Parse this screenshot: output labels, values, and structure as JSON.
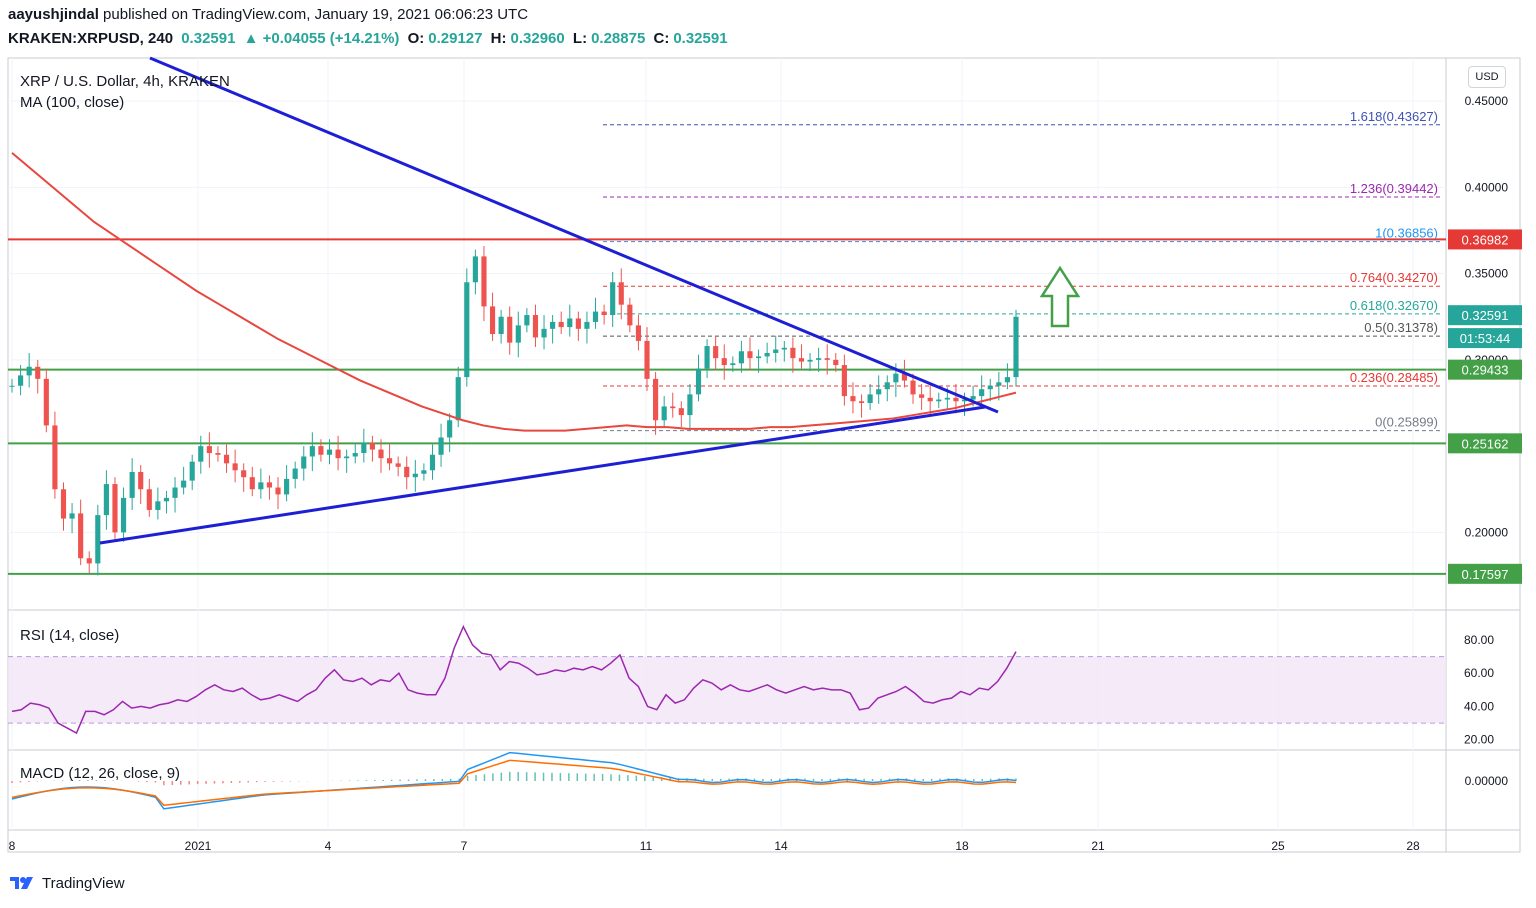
{
  "header": {
    "author": "aayushjindal",
    "published_text": "published on TradingView.com, January 19, 2021 06:06:23 UTC",
    "symbol": "KRAKEN:XRPUSD, 240",
    "last": "0.32591",
    "change": "▲ +0.04055 (+14.21%)",
    "o_label": "O:",
    "o_val": "0.29127",
    "h_label": "H:",
    "h_val": "0.32960",
    "l_label": "L:",
    "l_val": "0.28875",
    "c_label": "C:",
    "c_val": "0.32591"
  },
  "currency_button": "USD",
  "footer": {
    "brand": "TradingView"
  },
  "colors": {
    "bull": "#26a69a",
    "bear": "#ef5350",
    "trend": "#1d1fd4",
    "ma": "#e8473e",
    "support": "#43a047",
    "resistance": "#e53935",
    "rsi": "#9c27b0",
    "macd": "#2196f3",
    "signal": "#ff6d00"
  },
  "chart_data": {
    "type": "candlestick",
    "title": "XRP / U.S. Dollar, 4h, KRAKEN",
    "indicator_label": "MA (100, close)",
    "y_ticks": [
      "0.45000",
      "0.40000",
      "0.35000",
      "0.30000",
      "0.20000"
    ],
    "x_ticks": [
      "8",
      "2021",
      "4",
      "7",
      "11",
      "14",
      "18",
      "21",
      "25",
      "28"
    ],
    "ylim": [
      0.155,
      0.475
    ],
    "horizontal_levels": [
      {
        "label": "0.36982",
        "value": 0.36982,
        "kind": "resistance"
      },
      {
        "label": "0.29433",
        "value": 0.29433,
        "kind": "support"
      },
      {
        "label": "0.25162",
        "value": 0.25162,
        "kind": "support"
      },
      {
        "label": "0.17597",
        "value": 0.17597,
        "kind": "support"
      }
    ],
    "price_tags": [
      {
        "label": "0.32591",
        "value": 0.32591
      },
      {
        "label": "01:53:44",
        "value": 0.31378
      }
    ],
    "fibonacci": [
      {
        "label": "1.618(0.43627)",
        "value": 0.43627,
        "color": "#3f51b5"
      },
      {
        "label": "1.236(0.39442)",
        "value": 0.39442,
        "color": "#9c27b0"
      },
      {
        "label": "1(0.36856)",
        "value": 0.36856,
        "color": "#2196f3"
      },
      {
        "label": "0.764(0.34270)",
        "value": 0.3427,
        "color": "#e53935"
      },
      {
        "label": "0.618(0.32670)",
        "value": 0.3267,
        "color": "#26a69a"
      },
      {
        "label": "0.5(0.31378)",
        "value": 0.31378,
        "color": "#555555"
      },
      {
        "label": "0.236(0.28485)",
        "value": 0.28485,
        "color": "#e53935"
      },
      {
        "label": "0(0.25899)",
        "value": 0.25899,
        "color": "#787b86"
      }
    ],
    "closes": [
      0.285,
      0.291,
      0.296,
      0.289,
      0.262,
      0.225,
      0.208,
      0.211,
      0.185,
      0.182,
      0.21,
      0.228,
      0.2,
      0.22,
      0.235,
      0.225,
      0.213,
      0.218,
      0.22,
      0.226,
      0.23,
      0.241,
      0.25,
      0.246,
      0.245,
      0.24,
      0.236,
      0.232,
      0.225,
      0.229,
      0.226,
      0.222,
      0.231,
      0.237,
      0.244,
      0.25,
      0.245,
      0.248,
      0.243,
      0.244,
      0.246,
      0.252,
      0.248,
      0.243,
      0.24,
      0.238,
      0.232,
      0.234,
      0.236,
      0.245,
      0.255,
      0.265,
      0.29,
      0.345,
      0.36,
      0.331,
      0.315,
      0.325,
      0.31,
      0.32,
      0.326,
      0.313,
      0.318,
      0.322,
      0.319,
      0.324,
      0.318,
      0.322,
      0.328,
      0.326,
      0.345,
      0.332,
      0.32,
      0.311,
      0.289,
      0.265,
      0.273,
      0.272,
      0.268,
      0.28,
      0.295,
      0.308,
      0.301,
      0.297,
      0.298,
      0.305,
      0.301,
      0.302,
      0.304,
      0.306,
      0.307,
      0.301,
      0.299,
      0.3,
      0.301,
      0.3,
      0.297,
      0.279,
      0.276,
      0.275,
      0.28,
      0.283,
      0.287,
      0.292,
      0.288,
      0.28,
      0.278,
      0.276,
      0.277,
      0.278,
      0.276,
      0.277,
      0.279,
      0.283,
      0.285,
      0.287,
      0.29,
      0.325
    ],
    "ma100": [
      0.42,
      0.41,
      0.4,
      0.39,
      0.38,
      0.372,
      0.364,
      0.356,
      0.348,
      0.34,
      0.333,
      0.326,
      0.319,
      0.312,
      0.306,
      0.3,
      0.294,
      0.288,
      0.283,
      0.278,
      0.273,
      0.269,
      0.265,
      0.262,
      0.26,
      0.259,
      0.259,
      0.259,
      0.26,
      0.261,
      0.262,
      0.261,
      0.261,
      0.26,
      0.26,
      0.26,
      0.26,
      0.261,
      0.261,
      0.262,
      0.263,
      0.264,
      0.265,
      0.266,
      0.268,
      0.27,
      0.272,
      0.275,
      0.278,
      0.281
    ],
    "rsi": {
      "label": "RSI (14, close)",
      "ticks": [
        "80.00",
        "60.00",
        "40.00",
        "20.00"
      ],
      "values": [
        37,
        38,
        42,
        41,
        39,
        30,
        27,
        24,
        37,
        37,
        35,
        38,
        43,
        39,
        40,
        39,
        41,
        42,
        44,
        43,
        46,
        50,
        53,
        50,
        49,
        51,
        47,
        44,
        45,
        47,
        45,
        43,
        47,
        50,
        57,
        62,
        56,
        55,
        57,
        53,
        56,
        55,
        60,
        50,
        48,
        47,
        47,
        57,
        75,
        88,
        77,
        72,
        71,
        62,
        67,
        66,
        63,
        59,
        60,
        62,
        61,
        63,
        62,
        64,
        62,
        66,
        71,
        57,
        52,
        40,
        38,
        47,
        42,
        44,
        51,
        56,
        54,
        50,
        53,
        50,
        49,
        51,
        53,
        50,
        48,
        50,
        52,
        50,
        51,
        50,
        50,
        48,
        38,
        39,
        45,
        47,
        49,
        52,
        48,
        43,
        42,
        44,
        45,
        49,
        47,
        51,
        50,
        55,
        63,
        73
      ],
      "ylim": [
        15,
        95
      ]
    },
    "macd": {
      "label": "MACD (12, 26, close, 9)",
      "ticks": [
        "0.00000"
      ]
    }
  }
}
